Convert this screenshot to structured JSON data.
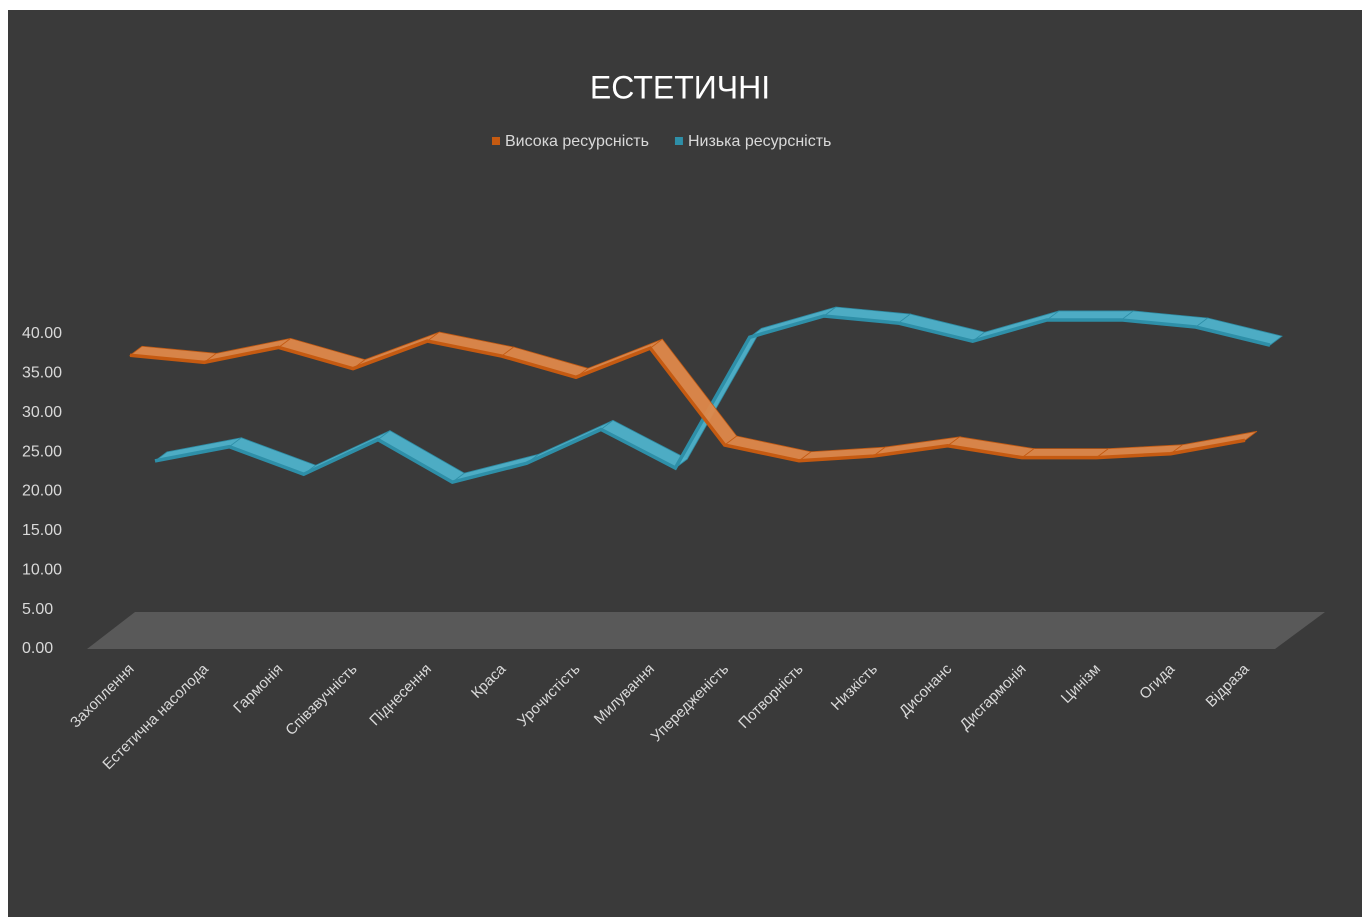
{
  "chart_data": {
    "type": "line3d",
    "title": "ЕСТЕТИЧНІ",
    "categories": [
      "Захоплення",
      "Естетична насолода",
      "Гармонія",
      "Співзвучність",
      "Піднесення",
      "Краса",
      "Урочистість",
      "Милування",
      "Упередженість",
      "Потворність",
      "Низкість",
      "Дисонанс",
      "Дисгармонія",
      "Цинізм",
      "Огида",
      "Відраза"
    ],
    "series": [
      {
        "name": "Висока ресурсність",
        "color": "#c55a11",
        "values": [
          37.3,
          36.4,
          38.3,
          35.6,
          39.1,
          37.2,
          34.5,
          38.2,
          25.9,
          23.9,
          24.5,
          25.8,
          24.3,
          24.3,
          24.8,
          26.5
        ]
      },
      {
        "name": "Низька ресурсність",
        "color": "#2e8fa8",
        "values": [
          21.6,
          23.4,
          19.9,
          24.3,
          18.9,
          21.3,
          25.6,
          20.7,
          37.3,
          40.0,
          39.1,
          36.8,
          39.5,
          39.5,
          38.6,
          36.3
        ]
      }
    ],
    "ylim": [
      0,
      40
    ],
    "yticks": [
      {
        "value": 0,
        "label": "0.00"
      },
      {
        "value": 5,
        "label": "5.00"
      },
      {
        "value": 10,
        "label": "10.00"
      },
      {
        "value": 15,
        "label": "15.00"
      },
      {
        "value": 20,
        "label": "20.00"
      },
      {
        "value": 25,
        "label": "25.00"
      },
      {
        "value": 30,
        "label": "30.00"
      },
      {
        "value": 35,
        "label": "35.00"
      },
      {
        "value": 40,
        "label": "40.00"
      }
    ],
    "legend": "top"
  }
}
